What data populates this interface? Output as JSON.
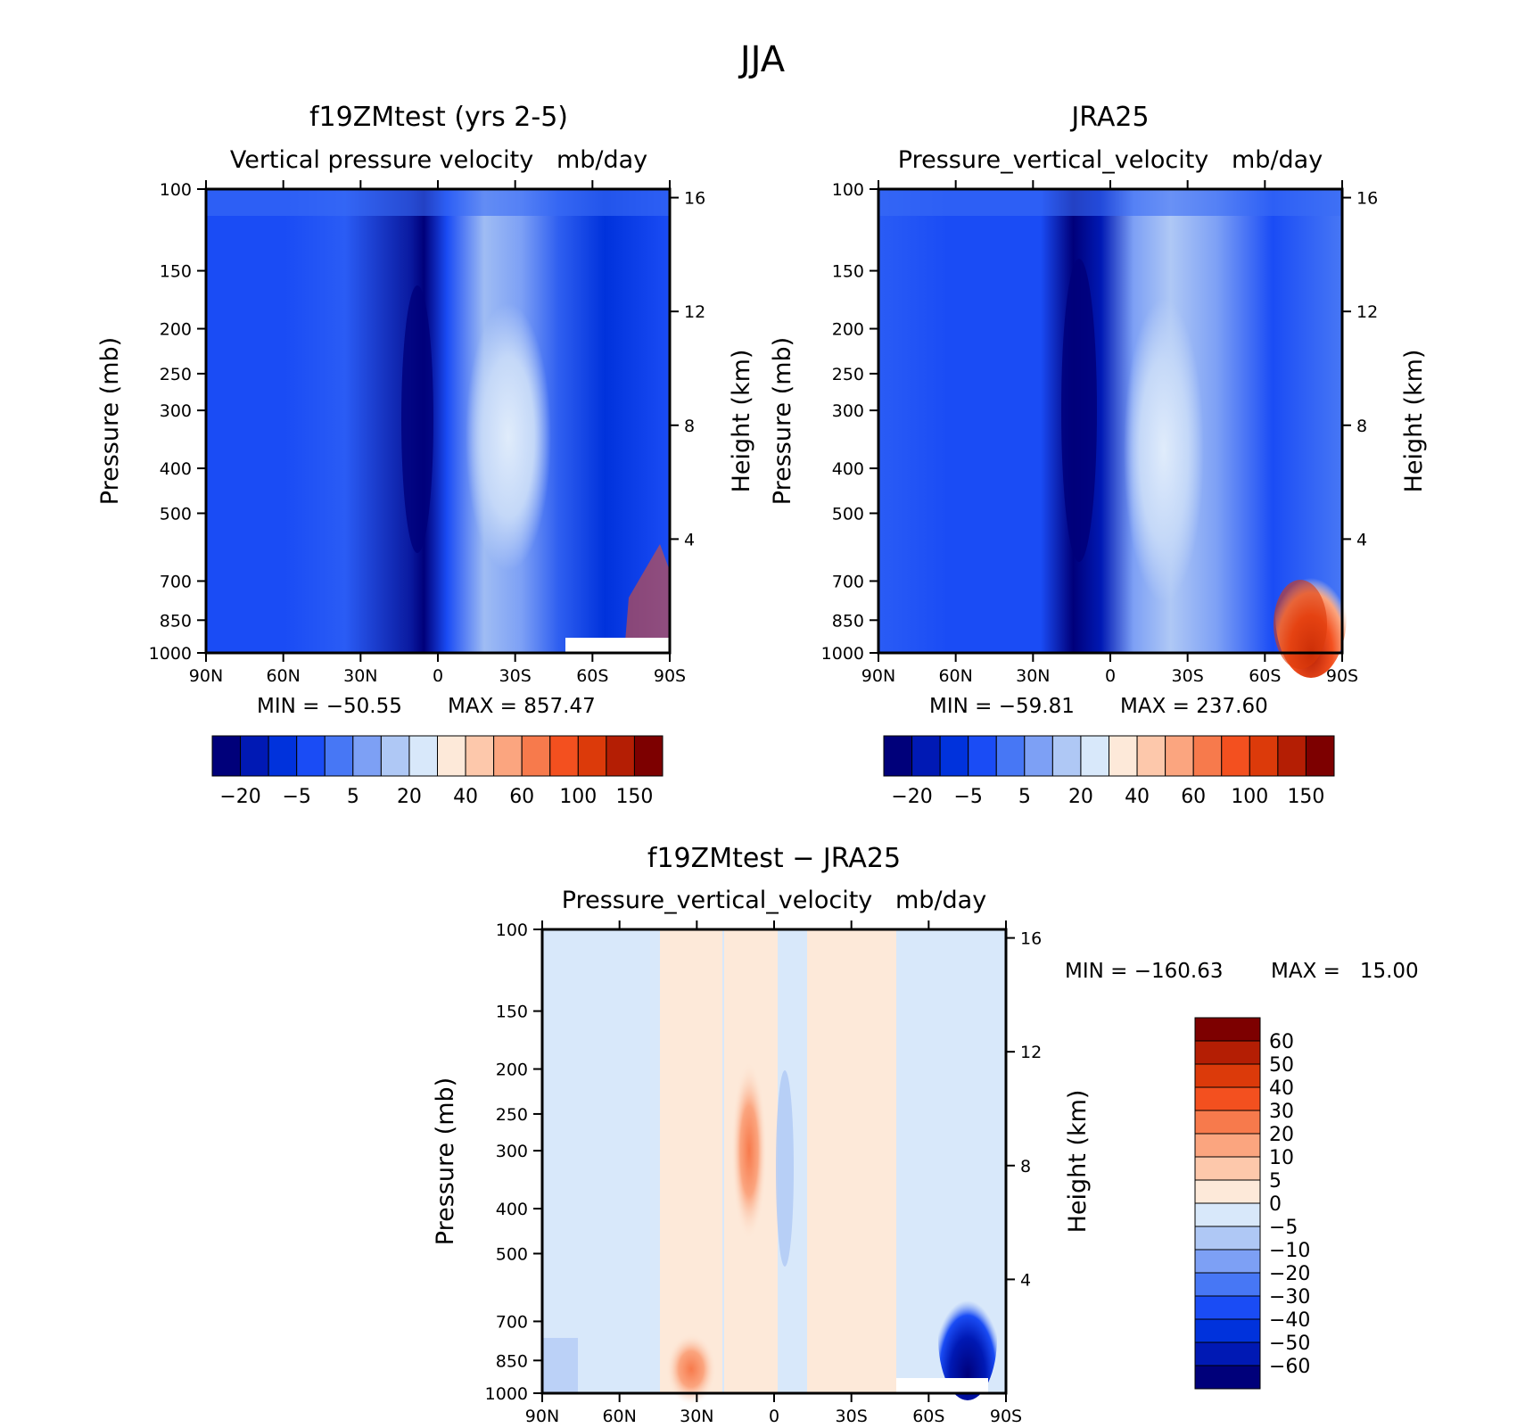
{
  "main_title": "JJA",
  "chart_data": [
    {
      "type": "heatmap",
      "panel": "model",
      "title": "f19ZMtest (yrs 2-5)",
      "subtitle": "Vertical pressure velocity   mb/day",
      "xlabel": "",
      "ylabel": "Pressure (mb)",
      "ylabel_right": "Height (km)",
      "x_ticks": [
        "90N",
        "60N",
        "30N",
        "0",
        "30S",
        "60S",
        "90S"
      ],
      "y_ticks": [
        "100",
        "150",
        "200",
        "250",
        "300",
        "400",
        "500",
        "700",
        "850",
        "1000"
      ],
      "y_right_ticks": [
        "16",
        "12",
        "8",
        "4"
      ],
      "y_scale": "log",
      "ylim": [
        1000,
        100
      ],
      "min_label": "MIN = −50.55",
      "max_label": "MAX = 857.47",
      "colorbar_ticks": [
        "−20",
        "−5",
        "5",
        "20",
        "40",
        "60",
        "100",
        "150"
      ],
      "colors": [
        "#00007a",
        "#0019b4",
        "#0032dc",
        "#1a4cf5",
        "#4777f5",
        "#7da0f5",
        "#afc8f5",
        "#d8e8fa",
        "#fde9d9",
        "#fdc8ab",
        "#fba57f",
        "#f77a4c",
        "#f3501f",
        "#dc3a0a",
        "#b41e04",
        "#7d0000"
      ]
    },
    {
      "type": "heatmap",
      "panel": "obs",
      "title": "JRA25",
      "subtitle": "Pressure_vertical_velocity   mb/day",
      "xlabel": "",
      "ylabel": "Pressure (mb)",
      "ylabel_right": "Height (km)",
      "x_ticks": [
        "90N",
        "60N",
        "30N",
        "0",
        "30S",
        "60S",
        "90S"
      ],
      "y_ticks": [
        "100",
        "150",
        "200",
        "250",
        "300",
        "400",
        "500",
        "700",
        "850",
        "1000"
      ],
      "y_right_ticks": [
        "16",
        "12",
        "8",
        "4"
      ],
      "y_scale": "log",
      "ylim": [
        1000,
        100
      ],
      "min_label": "MIN = −59.81",
      "max_label": "MAX = 237.60",
      "colorbar_ticks": [
        "−20",
        "−5",
        "5",
        "20",
        "40",
        "60",
        "100",
        "150"
      ]
    },
    {
      "type": "heatmap",
      "panel": "diff",
      "title": "f19ZMtest − JRA25",
      "subtitle": "Pressure_vertical_velocity   mb/day",
      "xlabel": "",
      "ylabel": "Pressure (mb)",
      "ylabel_right": "Height (km)",
      "x_ticks": [
        "90N",
        "60N",
        "30N",
        "0",
        "30S",
        "60S",
        "90S"
      ],
      "y_ticks": [
        "100",
        "150",
        "200",
        "250",
        "300",
        "400",
        "500",
        "700",
        "850",
        "1000"
      ],
      "y_right_ticks": [
        "16",
        "12",
        "8",
        "4"
      ],
      "y_scale": "log",
      "ylim": [
        1000,
        100
      ],
      "min_label": "MIN = −160.63",
      "max_label": "MAX =   15.00",
      "colorbar_ticks": [
        "60",
        "50",
        "40",
        "30",
        "20",
        "10",
        "5",
        "0",
        "−5",
        "−10",
        "−20",
        "−30",
        "−40",
        "−50",
        "−60"
      ],
      "colors": [
        "#7d0000",
        "#b41e04",
        "#dc3a0a",
        "#f3501f",
        "#f77a4c",
        "#fba57f",
        "#fdc8ab",
        "#fde9d9",
        "#d8e8fa",
        "#afc8f5",
        "#7da0f5",
        "#4777f5",
        "#1a4cf5",
        "#0032dc",
        "#0019b4",
        "#00007a"
      ]
    }
  ]
}
